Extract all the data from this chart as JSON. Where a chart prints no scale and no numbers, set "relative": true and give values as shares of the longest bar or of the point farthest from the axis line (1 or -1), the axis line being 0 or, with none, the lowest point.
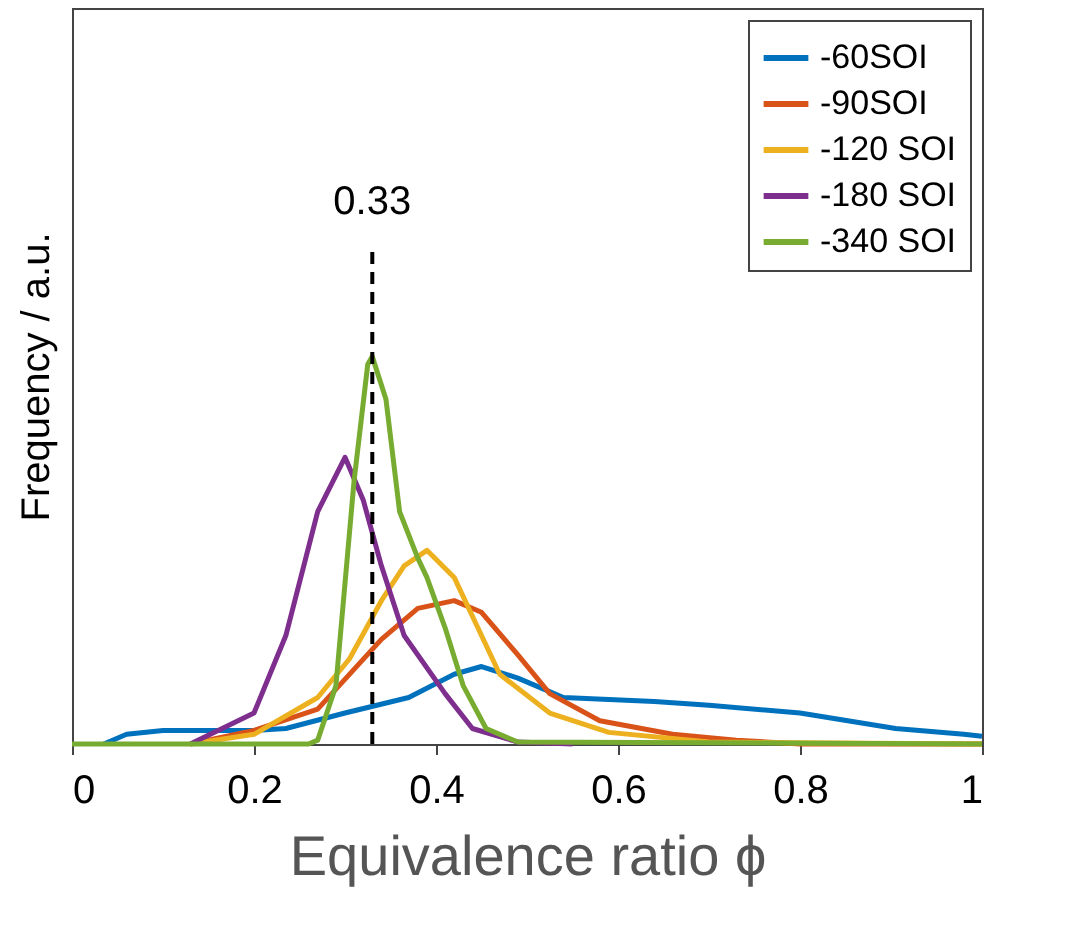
{
  "chart_data": {
    "type": "line",
    "xlabel": "Equivalence ratio ϕ",
    "ylabel": "Frequency / a.u.",
    "relative": true,
    "xlim": [
      0,
      1
    ],
    "xticks": [
      0,
      0.2,
      0.4,
      0.6,
      0.8,
      1
    ],
    "tick_labels": "x",
    "legend": "top right",
    "grid": false,
    "line_style": "solid",
    "marker": "none",
    "ref_lines": [
      {
        "axis": "x",
        "value": 0.33,
        "label": "0.33",
        "color": "#000000",
        "line_style": "dashed"
      }
    ],
    "series": [
      {
        "name": "-60SOI",
        "color": "#0072bd",
        "x": [
          0.035,
          0.06,
          0.1,
          0.2,
          0.235,
          0.3,
          0.37,
          0.42,
          0.45,
          0.49,
          0.51,
          0.54,
          0.64,
          0.7,
          0.8,
          0.905,
          0.98,
          1.0
        ],
        "values": [
          0,
          0.025,
          0.035,
          0.035,
          0.04,
          0.08,
          0.12,
          0.18,
          0.2,
          0.17,
          0.15,
          0.12,
          0.11,
          0.1,
          0.08,
          0.04,
          0.025,
          0.02
        ]
      },
      {
        "name": "-90SOI",
        "color": "#d95319",
        "x": [
          0.13,
          0.2,
          0.27,
          0.34,
          0.38,
          0.42,
          0.45,
          0.49,
          0.525,
          0.58,
          0.66,
          0.73,
          0.8,
          1.0
        ],
        "values": [
          0,
          0.035,
          0.09,
          0.27,
          0.35,
          0.37,
          0.34,
          0.23,
          0.13,
          0.06,
          0.025,
          0.01,
          0,
          0
        ]
      },
      {
        "name": "-120 SOI",
        "color": "#edb120",
        "x": [
          0.13,
          0.2,
          0.27,
          0.305,
          0.34,
          0.365,
          0.39,
          0.42,
          0.45,
          0.47,
          0.525,
          0.59,
          0.7,
          1.0
        ],
        "values": [
          0,
          0.025,
          0.12,
          0.22,
          0.37,
          0.46,
          0.5,
          0.43,
          0.28,
          0.18,
          0.08,
          0.03,
          0.005,
          0
        ]
      },
      {
        "name": "-180 SOI",
        "color": "#7e2f8e",
        "x": [
          0.13,
          0.2,
          0.235,
          0.27,
          0.3,
          0.32,
          0.34,
          0.365,
          0.41,
          0.44,
          0.49,
          0.55
        ],
        "values": [
          0,
          0.08,
          0.28,
          0.6,
          0.74,
          0.63,
          0.46,
          0.28,
          0.13,
          0.04,
          0.005,
          0
        ]
      },
      {
        "name": "-340 SOI",
        "color": "#77ac30",
        "x": [
          0,
          0.26,
          0.27,
          0.29,
          0.31,
          0.325,
          0.33,
          0.345,
          0.36,
          0.38,
          0.39,
          0.41,
          0.43,
          0.455,
          0.49,
          1.0
        ],
        "values": [
          0,
          0,
          0.01,
          0.15,
          0.68,
          0.98,
          1.0,
          0.89,
          0.6,
          0.48,
          0.43,
          0.3,
          0.15,
          0.04,
          0.005,
          0
        ]
      }
    ]
  }
}
